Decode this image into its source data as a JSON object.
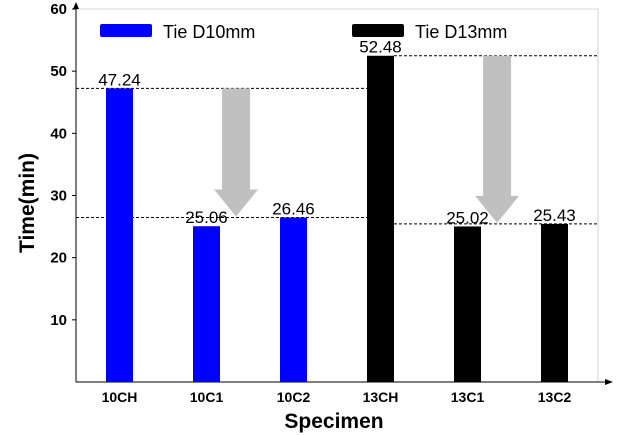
{
  "chart_data": {
    "type": "bar",
    "categories": [
      "10CH",
      "10C1",
      "10C2",
      "13CH",
      "13C1",
      "13C2"
    ],
    "values": [
      47.24,
      25.06,
      26.46,
      52.48,
      25.02,
      25.43
    ],
    "value_labels": [
      "47.24",
      "25.06",
      "26.46",
      "52.48",
      "25.02",
      "25.43"
    ],
    "series": [
      {
        "name": "Tie D10mm",
        "color": "#0000ff",
        "categories": [
          "10CH",
          "10C1",
          "10C2"
        ]
      },
      {
        "name": "Tie D13mm",
        "color": "#000000",
        "categories": [
          "13CH",
          "13C1",
          "13C2"
        ]
      }
    ],
    "xlabel": "Specimen",
    "ylabel": "Time(min)",
    "ylim": [
      0,
      60
    ],
    "yticks": [
      "10",
      "20",
      "30",
      "40",
      "50",
      "60"
    ],
    "grid": false,
    "legend_position": "top",
    "reference_lines": [
      47.24,
      26.46,
      52.48,
      25.43
    ],
    "arrows": [
      {
        "from": 47.24,
        "to": 26.46,
        "color": "#c0c0c0"
      },
      {
        "from": 52.48,
        "to": 25.43,
        "color": "#c0c0c0"
      }
    ]
  }
}
